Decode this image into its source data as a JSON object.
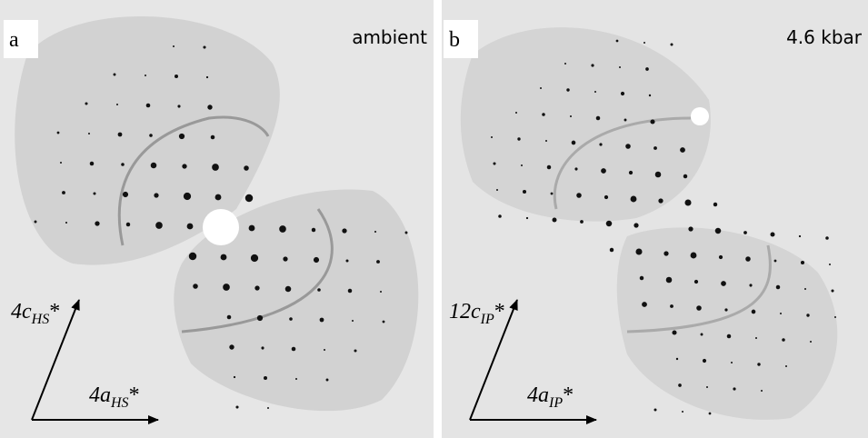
{
  "panels": [
    {
      "label": "a",
      "condition": "ambient",
      "axes": [
        {
          "main": "4c",
          "sub": "HS",
          "star": "*"
        },
        {
          "main": "4a",
          "sub": "HS",
          "star": "*"
        }
      ]
    },
    {
      "label": "b",
      "condition": "4.6 kbar",
      "axes": [
        {
          "main": "12c",
          "sub": "IP",
          "star": "*"
        },
        {
          "main": "4a",
          "sub": "IP",
          "star": "*"
        }
      ]
    }
  ]
}
